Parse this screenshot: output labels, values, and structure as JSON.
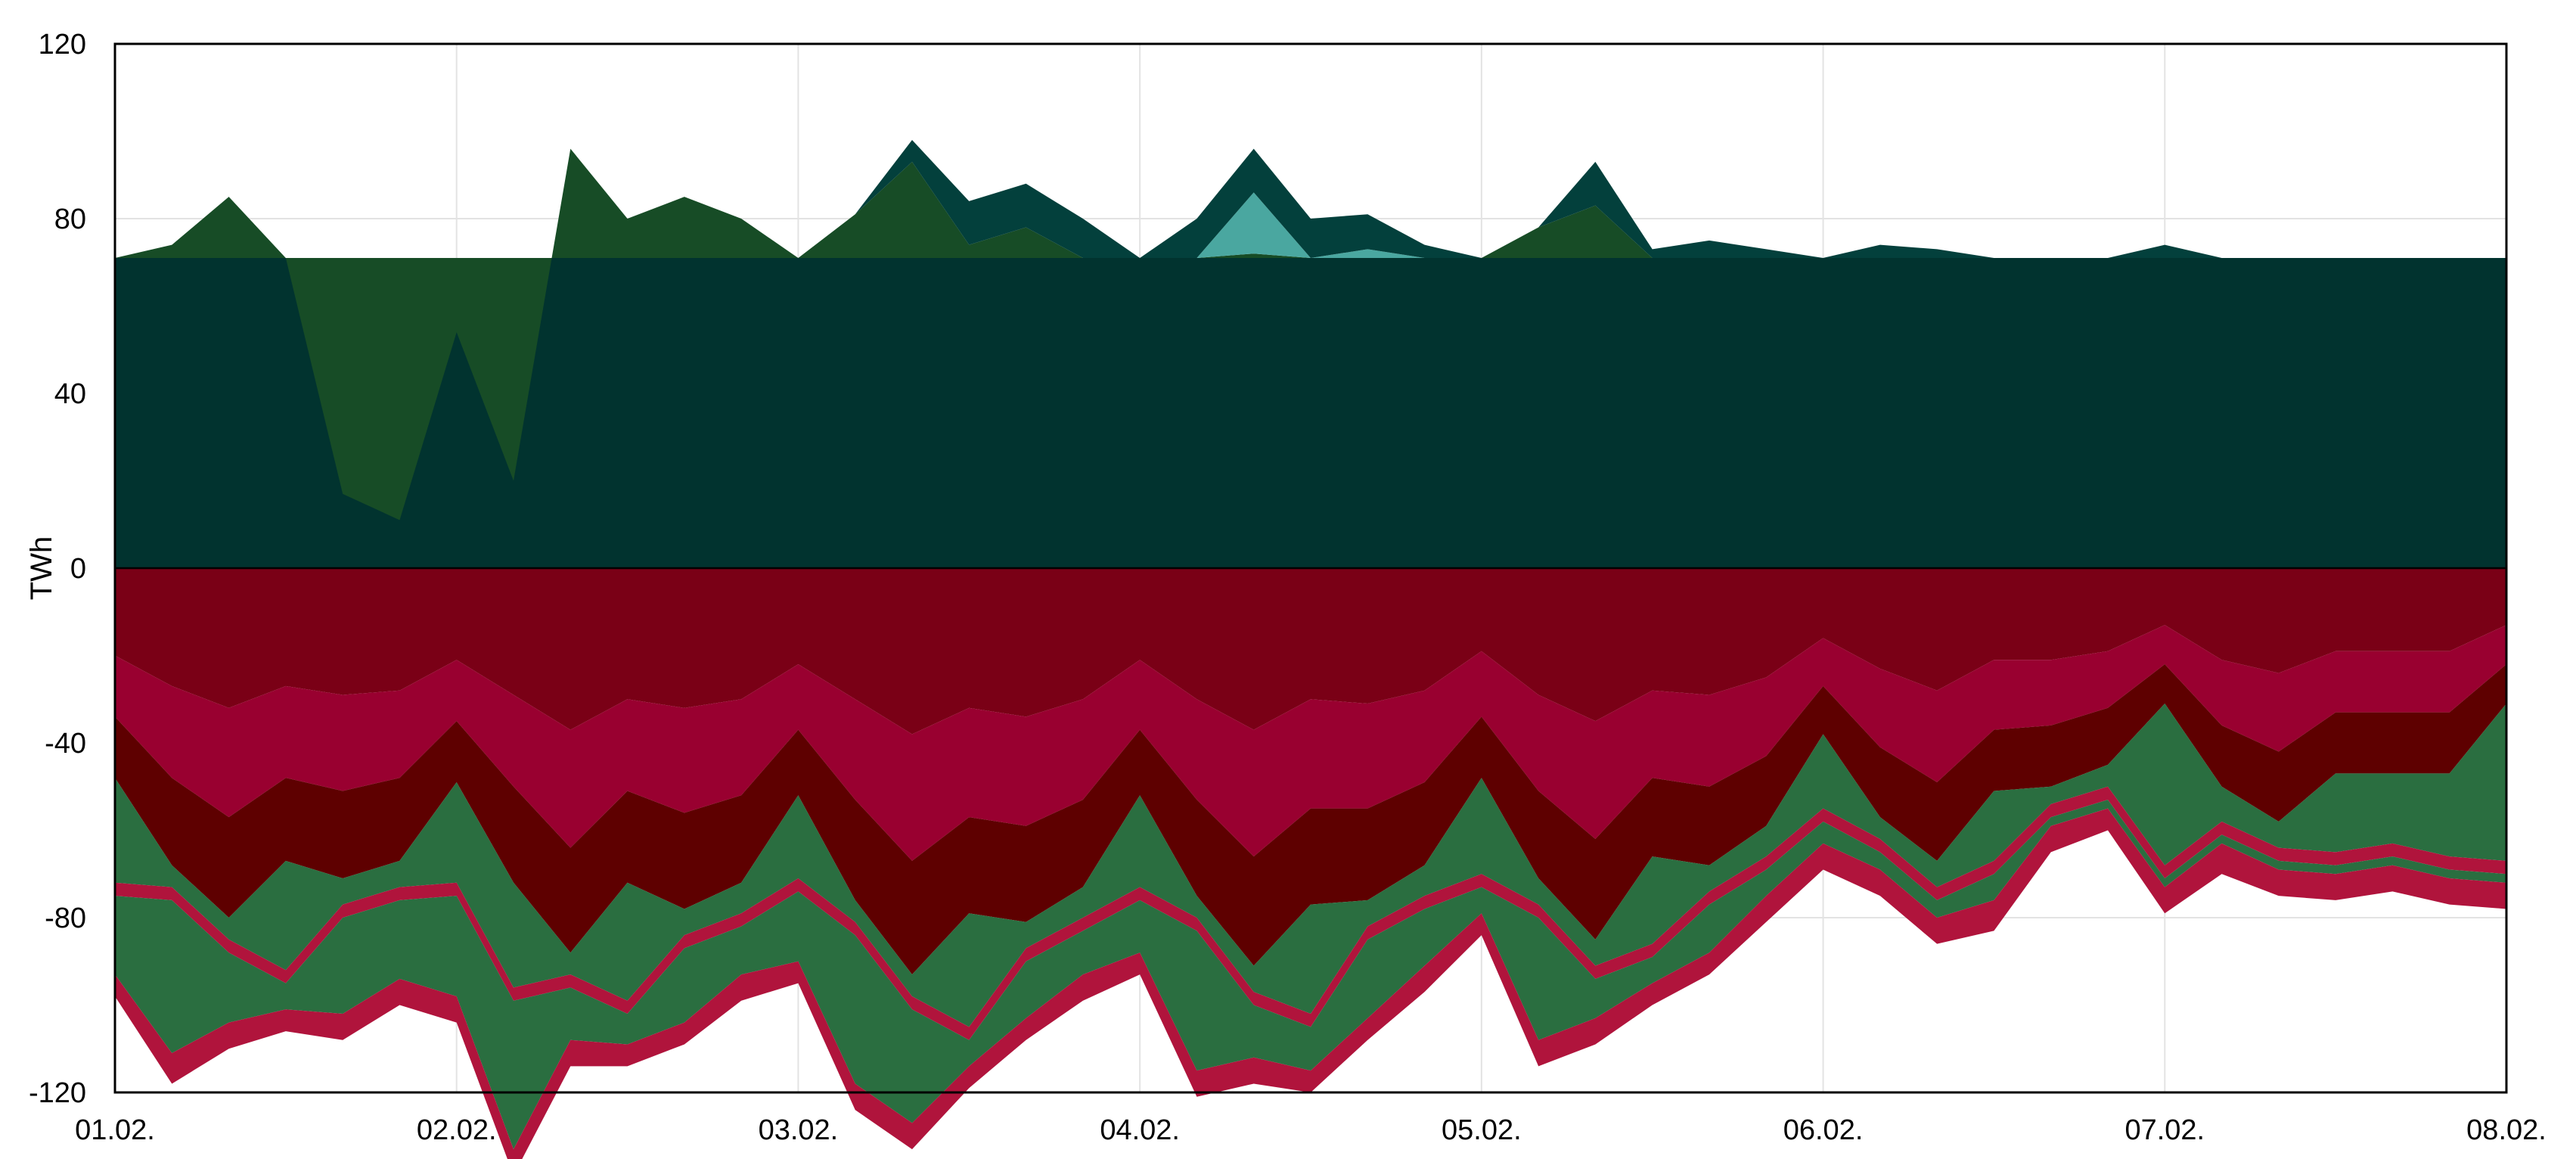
{
  "chart_data": {
    "type": "area",
    "title": "",
    "xlabel": "",
    "ylabel": "TWh",
    "ylim": [
      -120,
      120
    ],
    "yticks": [
      -120,
      -80,
      -40,
      0,
      40,
      80,
      120
    ],
    "xlim": [
      0,
      7
    ],
    "xticks": [
      "01.02.",
      "02.02.",
      "03.02.",
      "04.02.",
      "05.02.",
      "06.02.",
      "07.02.",
      "08.02."
    ],
    "grid": true,
    "legend": "none",
    "x": [
      0,
      0.1667,
      0.3333,
      0.5,
      0.6667,
      0.8333,
      1,
      1.1667,
      1.3333,
      1.5,
      1.6667,
      1.8333,
      2,
      2.1667,
      2.3333,
      2.5,
      2.6667,
      2.8333,
      3,
      3.1667,
      3.3333,
      3.5,
      3.6667,
      3.8333,
      4,
      4.1667,
      4.3333,
      4.5,
      4.6667,
      4.8333,
      5,
      5.1667,
      5.3333,
      5.5,
      5.6667,
      5.8333,
      6,
      6.1667,
      6.3333,
      6.5,
      6.6667,
      6.8333,
      7
    ],
    "positive_series": [
      {
        "color": "#01332f",
        "values": [
          71,
          71,
          71,
          71,
          71,
          71,
          71,
          71,
          71,
          71,
          71,
          71,
          71,
          71,
          71,
          71,
          71,
          71,
          71,
          71,
          71,
          71,
          71,
          71,
          71,
          71,
          71,
          71,
          71,
          71,
          71,
          71,
          71,
          71,
          71,
          71,
          71,
          71,
          71,
          71,
          71,
          71,
          71
        ]
      },
      {
        "color": "#174c26",
        "values": [
          0,
          3,
          14,
          0,
          -54,
          -60,
          -17,
          -51,
          25,
          9,
          14,
          9,
          0,
          10,
          22,
          3,
          7,
          0,
          0,
          0,
          1,
          0,
          0,
          0,
          0,
          7,
          12,
          0,
          0,
          0,
          0,
          0,
          0,
          0,
          0,
          0,
          0,
          0,
          0,
          0,
          0,
          0,
          0
        ]
      },
      {
        "color": "#4aa7a0",
        "values": [
          0,
          0,
          0,
          0,
          0,
          0,
          0,
          0,
          0,
          0,
          0,
          0,
          0,
          0,
          0,
          0,
          0,
          0,
          0,
          0,
          14,
          0,
          2,
          0,
          0,
          0,
          0,
          0,
          0,
          0,
          0,
          0,
          0,
          0,
          0,
          0,
          0,
          0,
          0,
          0,
          0,
          0,
          0
        ]
      },
      {
        "color": "#03403c",
        "values": [
          0,
          0,
          0,
          0,
          0,
          0,
          0,
          0,
          0,
          0,
          0,
          0,
          0,
          0,
          5,
          10,
          10,
          9,
          0,
          9,
          10,
          9,
          8,
          3,
          0,
          0,
          10,
          2,
          4,
          2,
          0,
          3,
          2,
          0,
          0,
          0,
          3,
          0,
          0,
          0,
          0,
          0,
          0
        ]
      }
    ],
    "negative_series": [
      {
        "color": "#7a0016",
        "values": [
          -20,
          -27,
          -32,
          -27,
          -29,
          -28,
          -21,
          -29,
          -37,
          -30,
          -32,
          -30,
          -22,
          -30,
          -38,
          -32,
          -34,
          -30,
          -21,
          -30,
          -37,
          -30,
          -31,
          -28,
          -19,
          -29,
          -35,
          -28,
          -29,
          -25,
          -16,
          -23,
          -28,
          -21,
          -21,
          -19,
          -13,
          -21,
          -24,
          -19,
          -19,
          -19,
          -13
        ]
      },
      {
        "color": "#990030",
        "values": [
          -14,
          -21,
          -25,
          -21,
          -22,
          -20,
          -14,
          -21,
          -27,
          -21,
          -24,
          -22,
          -15,
          -23,
          -29,
          -25,
          -25,
          -23,
          -16,
          -23,
          -29,
          -25,
          -24,
          -21,
          -15,
          -22,
          -27,
          -20,
          -21,
          -18,
          -11,
          -18,
          -21,
          -16,
          -15,
          -13,
          -9,
          -15,
          -18,
          -14,
          -14,
          -14,
          -9
        ]
      },
      {
        "color": "#5e0000",
        "values": [
          -14,
          -20,
          -23,
          -19,
          -20,
          -19,
          -14,
          -22,
          -24,
          -21,
          -22,
          -20,
          -15,
          -23,
          -26,
          -22,
          -22,
          -20,
          -15,
          -22,
          -25,
          -22,
          -21,
          -19,
          -14,
          -20,
          -23,
          -18,
          -18,
          -16,
          -11,
          -16,
          -18,
          -14,
          -14,
          -13,
          -9,
          -14,
          -16,
          -14,
          -14,
          -14,
          -9
        ]
      },
      {
        "color": "#2a6e40",
        "values": [
          -24,
          -5,
          -5,
          -25,
          -6,
          -6,
          -23,
          -24,
          -5,
          -27,
          -6,
          -7,
          -19,
          -5,
          -5,
          -26,
          -6,
          -7,
          -21,
          -5,
          -6,
          -25,
          -6,
          -7,
          -22,
          -6,
          -6,
          -20,
          -6,
          -7,
          -17,
          -5,
          -6,
          -16,
          -4,
          -5,
          -37,
          -8,
          -6,
          -18,
          -16,
          -19,
          -36
        ]
      },
      {
        "color": "#b0143c",
        "values": [
          -3,
          -3,
          -3,
          -3,
          -3,
          -3,
          -3,
          -3,
          -3,
          -3,
          -3,
          -3,
          -3,
          -3,
          -3,
          -3,
          -3,
          -3,
          -3,
          -3,
          -3,
          -3,
          -3,
          -3,
          -3,
          -3,
          -3,
          -3,
          -3,
          -3,
          -3,
          -3,
          -3,
          -3,
          -3,
          -3,
          -3,
          -3,
          -3,
          -3,
          -3,
          -3,
          -3
        ]
      },
      {
        "color": "#2a6e40",
        "values": [
          -18,
          -35,
          -16,
          -6,
          -22,
          -18,
          -23,
          -34,
          -12,
          -7,
          -17,
          -11,
          -16,
          -34,
          -26,
          -6,
          -13,
          -10,
          -12,
          -32,
          -12,
          -10,
          -18,
          -13,
          -6,
          -28,
          -9,
          -6,
          -11,
          -6,
          -5,
          -4,
          -4,
          -6,
          -2,
          -2,
          -2,
          -2,
          -2,
          -2,
          -2,
          -2,
          -2
        ]
      },
      {
        "color": "#b0143c",
        "values": [
          -5,
          -7,
          -6,
          -5,
          -6,
          -6,
          -6,
          -6,
          -6,
          -5,
          -5,
          -6,
          -5,
          -6,
          -6,
          -5,
          -5,
          -6,
          -5,
          -6,
          -6,
          -5,
          -5,
          -6,
          -5,
          -6,
          -6,
          -5,
          -5,
          -6,
          -6,
          -6,
          -6,
          -7,
          -6,
          -5,
          -6,
          -7,
          -6,
          -6,
          -6,
          -6,
          -6
        ]
      }
    ]
  }
}
